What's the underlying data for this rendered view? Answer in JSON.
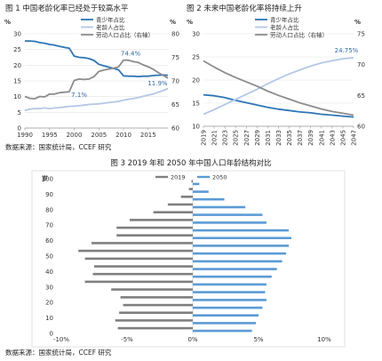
{
  "source_text": "数据来源：国家统计局，CCEF 研究",
  "chart_data": [
    {
      "id": "fig1",
      "type": "line",
      "title": "图 1  中国老龄化率已经处于较高水平",
      "left_unit": "%",
      "right_unit": "%",
      "x": [
        1990,
        1991,
        1992,
        1993,
        1994,
        1995,
        1996,
        1997,
        1998,
        1999,
        2000,
        2001,
        2002,
        2003,
        2004,
        2005,
        2006,
        2007,
        2008,
        2009,
        2010,
        2011,
        2012,
        2013,
        2014,
        2015,
        2016,
        2017,
        2018,
        2019
      ],
      "xticks": [
        "1990",
        "1995",
        "2000",
        "2005",
        "2010",
        "2015"
      ],
      "ylim_left": [
        0,
        30
      ],
      "yticks_left": [
        "0",
        "5",
        "10",
        "15",
        "20",
        "25",
        "30"
      ],
      "ylim_right": [
        60,
        80
      ],
      "yticks_right": [
        "60",
        "65",
        "70",
        "75",
        "80"
      ],
      "series": [
        {
          "name": "青少年占比",
          "axis": "left",
          "color": "#2e75b6",
          "values": [
            27.7,
            27.7,
            27.6,
            27.2,
            27.0,
            26.6,
            26.4,
            26.0,
            25.7,
            25.4,
            22.9,
            22.5,
            22.4,
            22.1,
            21.5,
            20.3,
            19.8,
            19.4,
            19.0,
            18.5,
            16.6,
            16.5,
            16.5,
            16.4,
            16.5,
            16.5,
            16.7,
            16.8,
            16.9,
            16.8
          ]
        },
        {
          "name": "老龄人占比",
          "axis": "left",
          "color": "#b4c7e7",
          "values": [
            5.6,
            6.0,
            6.2,
            6.2,
            6.4,
            6.2,
            6.4,
            6.5,
            6.7,
            6.9,
            7.0,
            7.1,
            7.3,
            7.5,
            7.6,
            7.7,
            7.9,
            8.1,
            8.3,
            8.5,
            8.9,
            9.1,
            9.4,
            9.7,
            10.1,
            10.5,
            10.8,
            11.4,
            11.9,
            12.6
          ]
        },
        {
          "name": "劳动人口占比（右轴）",
          "axis": "right",
          "color": "#8c8c8c",
          "values": [
            66.7,
            66.3,
            66.2,
            66.7,
            66.6,
            67.2,
            67.2,
            67.5,
            67.6,
            67.7,
            70.1,
            70.4,
            70.3,
            70.4,
            70.9,
            72.0,
            72.3,
            72.5,
            72.7,
            73.0,
            74.4,
            74.4,
            74.1,
            73.9,
            73.4,
            73.0,
            72.5,
            71.8,
            71.2,
            70.6
          ]
        }
      ],
      "annotations": [
        "74.4%",
        "11.9%",
        "7.1%"
      ]
    },
    {
      "id": "fig2",
      "type": "line",
      "title": "图 2  未来中国老龄化率将持续上升",
      "left_unit": "%",
      "right_unit": "%",
      "x": [
        2019,
        2021,
        2023,
        2025,
        2027,
        2029,
        2031,
        2033,
        2035,
        2037,
        2039,
        2041,
        2043,
        2045,
        2047
      ],
      "xticks": [
        "2019",
        "2021",
        "2023",
        "2025",
        "2027",
        "2029",
        "2031",
        "2033",
        "2035",
        "2037",
        "2039",
        "2041",
        "2043",
        "2045",
        "2047"
      ],
      "ylim_left": [
        10,
        30
      ],
      "yticks_left": [
        "10",
        "15",
        "20",
        "25",
        "30"
      ],
      "ylim_right": [
        60,
        75
      ],
      "yticks_right": [
        "60",
        "65",
        "70",
        "75"
      ],
      "series": [
        {
          "name": "青少年占比",
          "axis": "left",
          "color": "#2e75b6",
          "values": [
            16.8,
            16.6,
            16.2,
            15.6,
            15.1,
            14.6,
            14.1,
            13.7,
            13.4,
            13.1,
            12.9,
            12.6,
            12.4,
            12.2,
            12.0
          ]
        },
        {
          "name": "老龄人占比",
          "axis": "left",
          "color": "#b4c7e7",
          "values": [
            12.6,
            13.6,
            14.7,
            15.8,
            16.9,
            18.0,
            19.2,
            20.3,
            21.3,
            22.2,
            23.0,
            23.7,
            24.2,
            24.6,
            24.8
          ]
        },
        {
          "name": "劳动人口占比（右轴）",
          "axis": "right",
          "color": "#8c8c8c",
          "values": [
            70.6,
            69.6,
            68.7,
            67.9,
            67.2,
            66.5,
            65.7,
            65.0,
            64.4,
            63.8,
            63.3,
            62.8,
            62.4,
            62.1,
            61.8
          ]
        }
      ],
      "annotations": [
        "24.75%"
      ]
    },
    {
      "id": "fig3",
      "type": "bar",
      "orientation": "horizontal",
      "title": "图 3 2019 年和 2050 年中国人口年龄结构对比",
      "y_unit": "岁",
      "yticks": [
        "0",
        "10",
        "20",
        "30",
        "40",
        "50",
        "60",
        "70",
        "80",
        "90",
        "100"
      ],
      "xticks": [
        "-10%",
        "-5%",
        "0%",
        "5%",
        "10%"
      ],
      "xlim": [
        -10,
        10
      ],
      "categories": [
        "0-4",
        "5-9",
        "10-14",
        "15-19",
        "20-24",
        "25-29",
        "30-34",
        "35-39",
        "40-44",
        "45-49",
        "50-54",
        "55-59",
        "60-64",
        "65-69",
        "70-74",
        "75-79",
        "80-84",
        "85-89",
        "90-94",
        "95-99"
      ],
      "series": [
        {
          "name": "2019",
          "color": "#7f7f7f",
          "values": [
            -5.7,
            -5.9,
            -5.6,
            -5.3,
            -5.5,
            -6.2,
            -8.2,
            -7.6,
            -7.5,
            -8.2,
            -8.7,
            -7.7,
            -5.8,
            -5.8,
            -4.8,
            -3.0,
            -1.9,
            -0.9,
            -0.3,
            -0.1
          ]
        },
        {
          "name": "2050",
          "color": "#5b9bd5",
          "values": [
            4.5,
            4.8,
            5.0,
            5.3,
            5.6,
            5.5,
            5.6,
            6.0,
            6.4,
            6.8,
            7.1,
            7.3,
            7.5,
            7.3,
            5.6,
            5.3,
            4.0,
            2.4,
            1.2,
            0.5
          ]
        }
      ]
    }
  ]
}
